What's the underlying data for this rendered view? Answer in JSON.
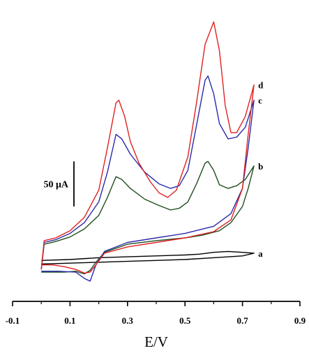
{
  "chart_data": {
    "type": "line",
    "title": "",
    "xlabel": "E/V",
    "ylabel": "",
    "xlim": [
      -0.1,
      0.9
    ],
    "ylim": [
      -20,
      290
    ],
    "x_ticks": [
      -0.1,
      0.1,
      0.3,
      0.5,
      0.7,
      0.9
    ],
    "x_tick_labels": [
      "-0.1",
      "0.1",
      "0.3",
      "0.5",
      "0.7",
      "0.9"
    ],
    "y_axis_visible": false,
    "grid": false,
    "scale_bar": {
      "label": "50 μA",
      "value": 50,
      "y_from": 70,
      "y_to": 120
    },
    "series": [
      {
        "name": "a",
        "color": "#000000",
        "forward": [
          [
            0.0,
            10
          ],
          [
            0.1,
            11
          ],
          [
            0.2,
            13
          ],
          [
            0.3,
            14
          ],
          [
            0.4,
            15
          ],
          [
            0.5,
            16
          ],
          [
            0.55,
            17
          ],
          [
            0.6,
            19
          ],
          [
            0.65,
            20
          ],
          [
            0.7,
            19
          ],
          [
            0.74,
            18
          ]
        ],
        "reverse": [
          [
            0.74,
            18
          ],
          [
            0.7,
            15
          ],
          [
            0.6,
            13
          ],
          [
            0.5,
            11
          ],
          [
            0.4,
            10
          ],
          [
            0.3,
            9
          ],
          [
            0.2,
            8
          ],
          [
            0.1,
            7
          ],
          [
            0.0,
            6
          ]
        ]
      },
      {
        "name": "b",
        "color": "#1e4d1e",
        "forward": [
          [
            0.0,
            0
          ],
          [
            0.01,
            28
          ],
          [
            0.05,
            31
          ],
          [
            0.1,
            36
          ],
          [
            0.15,
            45
          ],
          [
            0.2,
            60
          ],
          [
            0.23,
            80
          ],
          [
            0.26,
            103
          ],
          [
            0.28,
            100
          ],
          [
            0.31,
            90
          ],
          [
            0.36,
            78
          ],
          [
            0.41,
            71
          ],
          [
            0.45,
            66
          ],
          [
            0.48,
            68
          ],
          [
            0.51,
            75
          ],
          [
            0.54,
            95
          ],
          [
            0.57,
            118
          ],
          [
            0.58,
            120
          ],
          [
            0.6,
            110
          ],
          [
            0.62,
            94
          ],
          [
            0.65,
            90
          ],
          [
            0.68,
            93
          ],
          [
            0.71,
            100
          ],
          [
            0.74,
            115
          ]
        ],
        "reverse": [
          [
            0.74,
            115
          ],
          [
            0.72,
            90
          ],
          [
            0.7,
            70
          ],
          [
            0.66,
            52
          ],
          [
            0.62,
            43
          ],
          [
            0.56,
            38
          ],
          [
            0.5,
            35
          ],
          [
            0.4,
            32
          ],
          [
            0.3,
            28
          ],
          [
            0.22,
            19
          ],
          [
            0.19,
            8
          ],
          [
            0.17,
            -1
          ],
          [
            0.15,
            -5
          ],
          [
            0.12,
            -2
          ],
          [
            0.08,
            -3
          ],
          [
            0.04,
            -3
          ],
          [
            0.0,
            -3
          ]
        ]
      },
      {
        "name": "c",
        "color": "#2a2aa8",
        "forward": [
          [
            0.0,
            0
          ],
          [
            0.01,
            30
          ],
          [
            0.05,
            33
          ],
          [
            0.1,
            40
          ],
          [
            0.15,
            52
          ],
          [
            0.2,
            75
          ],
          [
            0.23,
            108
          ],
          [
            0.26,
            150
          ],
          [
            0.28,
            145
          ],
          [
            0.31,
            128
          ],
          [
            0.36,
            108
          ],
          [
            0.41,
            95
          ],
          [
            0.45,
            90
          ],
          [
            0.48,
            93
          ],
          [
            0.51,
            110
          ],
          [
            0.54,
            160
          ],
          [
            0.57,
            210
          ],
          [
            0.58,
            215
          ],
          [
            0.6,
            195
          ],
          [
            0.62,
            162
          ],
          [
            0.65,
            145
          ],
          [
            0.68,
            147
          ],
          [
            0.71,
            158
          ],
          [
            0.74,
            188
          ]
        ],
        "reverse": [
          [
            0.74,
            188
          ],
          [
            0.72,
            135
          ],
          [
            0.7,
            90
          ],
          [
            0.66,
            62
          ],
          [
            0.6,
            48
          ],
          [
            0.5,
            40
          ],
          [
            0.4,
            35
          ],
          [
            0.3,
            30
          ],
          [
            0.22,
            20
          ],
          [
            0.19,
            5
          ],
          [
            0.17,
            -13
          ],
          [
            0.15,
            -10
          ],
          [
            0.12,
            -3
          ],
          [
            0.06,
            -2
          ],
          [
            0.0,
            -2
          ]
        ]
      },
      {
        "name": "d",
        "color": "#e02020",
        "forward": [
          [
            0.0,
            0
          ],
          [
            0.01,
            32
          ],
          [
            0.05,
            35
          ],
          [
            0.1,
            43
          ],
          [
            0.15,
            58
          ],
          [
            0.2,
            88
          ],
          [
            0.23,
            135
          ],
          [
            0.26,
            185
          ],
          [
            0.27,
            188
          ],
          [
            0.29,
            170
          ],
          [
            0.31,
            142
          ],
          [
            0.34,
            118
          ],
          [
            0.38,
            97
          ],
          [
            0.41,
            85
          ],
          [
            0.44,
            80
          ],
          [
            0.47,
            88
          ],
          [
            0.51,
            125
          ],
          [
            0.54,
            185
          ],
          [
            0.57,
            250
          ],
          [
            0.6,
            275
          ],
          [
            0.62,
            243
          ],
          [
            0.64,
            182
          ],
          [
            0.66,
            152
          ],
          [
            0.68,
            152
          ],
          [
            0.71,
            170
          ],
          [
            0.74,
            205
          ]
        ],
        "reverse": [
          [
            0.74,
            205
          ],
          [
            0.72,
            150
          ],
          [
            0.7,
            90
          ],
          [
            0.66,
            55
          ],
          [
            0.6,
            42
          ],
          [
            0.5,
            35
          ],
          [
            0.4,
            30
          ],
          [
            0.3,
            25
          ],
          [
            0.22,
            18
          ],
          [
            0.19,
            5
          ],
          [
            0.17,
            -3
          ],
          [
            0.15,
            -4
          ],
          [
            0.12,
            0
          ],
          [
            0.08,
            3
          ],
          [
            0.04,
            5
          ],
          [
            0.0,
            5
          ]
        ]
      }
    ]
  }
}
